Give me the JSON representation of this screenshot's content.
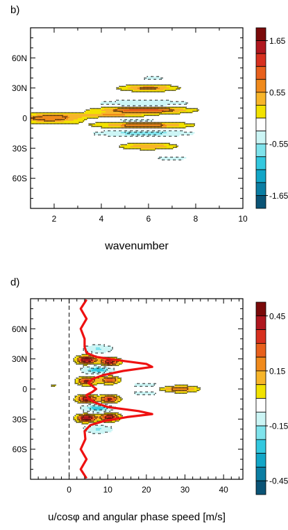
{
  "chart_data": [
    {
      "panel": "b)",
      "type": "heatmap",
      "xlabel": "wavenumber",
      "ylabel": "",
      "xlim": [
        1,
        10
      ],
      "ylim": [
        -90,
        90
      ],
      "xticks": [
        2,
        4,
        6,
        8,
        10
      ],
      "yticks": [
        {
          "v": 60,
          "l": "60N"
        },
        {
          "v": 30,
          "l": "30N"
        },
        {
          "v": 0,
          "l": "0"
        },
        {
          "v": -30,
          "l": "30S"
        },
        {
          "v": -60,
          "l": "60S"
        }
      ],
      "colorbar": {
        "labels": [
          {
            "i": 1,
            "l": "1.65"
          },
          {
            "i": 5,
            "l": "0.55"
          },
          {
            "i": 9,
            "l": "-0.55"
          },
          {
            "i": 13,
            "l": "-1.65"
          }
        ]
      },
      "features": [
        {
          "x": 1.8,
          "y": 0,
          "rx": 1.6,
          "ry": 5,
          "v": 0.9
        },
        {
          "x": 5.8,
          "y": 8,
          "rx": 2.0,
          "ry": 3.5,
          "v": 1.1
        },
        {
          "x": 5.8,
          "y": -7,
          "rx": 2.0,
          "ry": 3.5,
          "v": 0.9
        },
        {
          "x": 6.0,
          "y": 30,
          "rx": 1.3,
          "ry": 3.5,
          "v": 0.8
        },
        {
          "x": 6.0,
          "y": -28,
          "rx": 1.3,
          "ry": 3.5,
          "v": 0.7
        },
        {
          "x": 4.5,
          "y": 3,
          "rx": 1.5,
          "ry": 2,
          "v": 0.6
        },
        {
          "x": 5.8,
          "y": 15,
          "rx": 2.0,
          "ry": 3,
          "v": -0.7
        },
        {
          "x": 5.8,
          "y": -15,
          "rx": 2.0,
          "ry": 3,
          "v": -0.9
        },
        {
          "x": 5.5,
          "y": -2,
          "rx": 1.5,
          "ry": 2,
          "v": -0.5
        },
        {
          "x": 6.2,
          "y": 40,
          "rx": 1.8,
          "ry": 4,
          "v": -0.3
        },
        {
          "x": 7.0,
          "y": -40,
          "rx": 2.5,
          "ry": 5,
          "v": -0.3
        }
      ]
    },
    {
      "panel": "d)",
      "type": "heatmap",
      "xlabel": "u/cosφ and angular phase speed [m/s]",
      "ylabel": "",
      "xlim": [
        -10,
        45
      ],
      "ylim": [
        -90,
        90
      ],
      "xticks": [
        0,
        10,
        20,
        30,
        40
      ],
      "yticks": [
        {
          "v": 60,
          "l": "60N"
        },
        {
          "v": 30,
          "l": "30N"
        },
        {
          "v": 0,
          "l": "0"
        },
        {
          "v": -30,
          "l": "30S"
        },
        {
          "v": -60,
          "l": "60S"
        }
      ],
      "colorbar": {
        "labels": [
          {
            "i": 1,
            "l": "0.45"
          },
          {
            "i": 5,
            "l": "0.15"
          },
          {
            "i": 9,
            "l": "-0.15"
          },
          {
            "i": 13,
            "l": "-0.45"
          }
        ]
      },
      "features": [
        {
          "x": 4.5,
          "y": 29,
          "rx": 2.5,
          "ry": 4,
          "v": 0.45
        },
        {
          "x": 10.5,
          "y": 27,
          "rx": 2.5,
          "ry": 4,
          "v": 0.4
        },
        {
          "x": 4.5,
          "y": 8,
          "rx": 2.5,
          "ry": 4,
          "v": 0.35
        },
        {
          "x": 10.5,
          "y": 9,
          "rx": 2.5,
          "ry": 4,
          "v": 0.3
        },
        {
          "x": 4.5,
          "y": -10,
          "rx": 2.5,
          "ry": 4,
          "v": 0.4
        },
        {
          "x": 10.5,
          "y": -10,
          "rx": 2.5,
          "ry": 4,
          "v": 0.35
        },
        {
          "x": 4.5,
          "y": -29,
          "rx": 2.5,
          "ry": 4,
          "v": 0.45
        },
        {
          "x": 10.5,
          "y": -28,
          "rx": 2.5,
          "ry": 4,
          "v": 0.4
        },
        {
          "x": 28.5,
          "y": 0,
          "rx": 5,
          "ry": 3.5,
          "v": 0.25
        },
        {
          "x": 7.5,
          "y": 19,
          "rx": 4,
          "ry": 4,
          "v": -0.3
        },
        {
          "x": 7.5,
          "y": -19,
          "rx": 4,
          "ry": 4,
          "v": -0.3
        },
        {
          "x": 7.5,
          "y": 40,
          "rx": 4,
          "ry": 4,
          "v": -0.2
        },
        {
          "x": 7.5,
          "y": -40,
          "rx": 4,
          "ry": 4,
          "v": -0.2
        },
        {
          "x": 20,
          "y": 4,
          "rx": 5,
          "ry": 2.5,
          "v": -0.12
        },
        {
          "x": 20,
          "y": -4,
          "rx": 5,
          "ry": 2.5,
          "v": -0.12
        },
        {
          "x": -4,
          "y": 4,
          "rx": 0.8,
          "ry": 1,
          "v": 0.15
        }
      ],
      "red_line": {
        "name": "",
        "lat": [
          -89,
          -80,
          -70,
          -60,
          -50,
          -42,
          -36,
          -32,
          -28,
          -25,
          -22,
          -18,
          -14,
          -10,
          -6,
          -3,
          0,
          3,
          6,
          10,
          14,
          18,
          22,
          25,
          28,
          32,
          36,
          42,
          50,
          60,
          70,
          80,
          89
        ],
        "u": [
          4.5,
          3.0,
          4.5,
          3.0,
          4.2,
          4.0,
          5.5,
          9.0,
          15.0,
          21.5,
          18.0,
          10.0,
          7.0,
          5.0,
          4.5,
          6.0,
          7.0,
          6.0,
          5.0,
          6.0,
          9.0,
          14.0,
          21.5,
          20.0,
          14.0,
          7.0,
          4.5,
          4.0,
          4.0,
          3.0,
          4.5,
          3.0,
          4.5
        ]
      }
    }
  ]
}
